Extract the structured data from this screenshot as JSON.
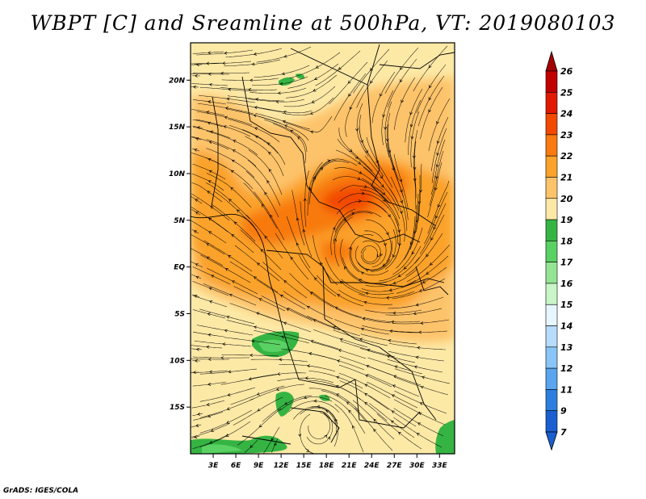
{
  "title": "WBPT [C] and Sreamline at 500hPa, VT: 2019080103",
  "credit": "GrADS: IGES/COLA",
  "map": {
    "lon_range": [
      0,
      35
    ],
    "lat_range": [
      -20,
      24
    ],
    "lat_ticks": [
      {
        "value": 20,
        "label": "20N"
      },
      {
        "value": 15,
        "label": "15N"
      },
      {
        "value": 10,
        "label": "10N"
      },
      {
        "value": 5,
        "label": "5N"
      },
      {
        "value": 0,
        "label": "EQ"
      },
      {
        "value": -5,
        "label": "5S"
      },
      {
        "value": -10,
        "label": "10S"
      },
      {
        "value": -15,
        "label": "15S"
      }
    ],
    "lon_ticks": [
      {
        "value": 3,
        "label": "3E"
      },
      {
        "value": 6,
        "label": "6E"
      },
      {
        "value": 9,
        "label": "9E"
      },
      {
        "value": 12,
        "label": "12E"
      },
      {
        "value": 15,
        "label": "15E"
      },
      {
        "value": 18,
        "label": "18E"
      },
      {
        "value": 21,
        "label": "21E"
      },
      {
        "value": 24,
        "label": "24E"
      },
      {
        "value": 27,
        "label": "27E"
      },
      {
        "value": 30,
        "label": "30E"
      },
      {
        "value": 33,
        "label": "33E"
      }
    ],
    "streamline_color": "#000000",
    "features": {
      "vortex_center": {
        "lon": 23.8,
        "lat": 1.0
      },
      "southern_vortex": {
        "lon": 17.0,
        "lat": -16.5
      }
    }
  },
  "colorbar": {
    "levels": [
      "26",
      "25",
      "24",
      "23",
      "22",
      "21",
      "20",
      "19",
      "18",
      "17",
      "16",
      "15",
      "14",
      "13",
      "12",
      "11",
      "9",
      "7"
    ],
    "colors": [
      "#a50000",
      "#c10000",
      "#e11a00",
      "#f24a00",
      "#f87a10",
      "#fba22a",
      "#fdc36a",
      "#fde9a6",
      "#36b443",
      "#5ad163",
      "#94e494",
      "#c9f5c9",
      "#e6f7ff",
      "#b7dcfb",
      "#8ac5f7",
      "#5ba4ee",
      "#2c7fe0",
      "#1a5fd0"
    ],
    "top_arrow_color": "#a50000",
    "bottom_arrow_color": "#1a5fd0"
  }
}
